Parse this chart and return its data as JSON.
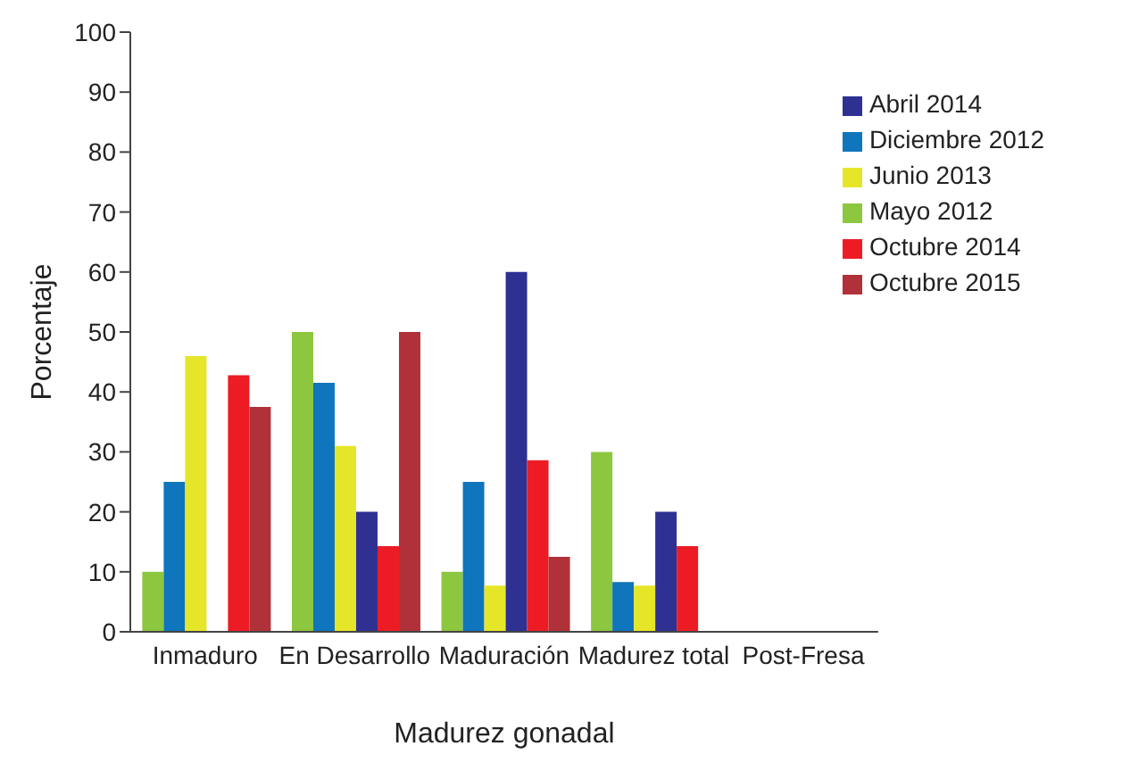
{
  "chart_data": {
    "type": "bar",
    "xlabel": "Madurez gonadal",
    "ylabel": "Porcentaje",
    "categories": [
      "Inmaduro",
      "En Desarrollo",
      "Maduración",
      "Madurez total",
      "Post-Fresa"
    ],
    "series": [
      {
        "name": "Mayo 2012",
        "color": "#8dc63f",
        "values": [
          10,
          50,
          10,
          30,
          0
        ]
      },
      {
        "name": "Diciembre 2012",
        "color": "#0f75bc",
        "values": [
          25,
          41.5,
          25,
          8.3,
          0
        ]
      },
      {
        "name": "Junio 2013",
        "color": "#e6e629",
        "values": [
          46,
          31,
          7.7,
          7.7,
          0
        ]
      },
      {
        "name": "Abril 2014",
        "color": "#2e3192",
        "values": [
          0,
          20,
          60,
          20,
          0
        ]
      },
      {
        "name": "Octubre 2014",
        "color": "#ed1c24",
        "values": [
          42.8,
          14.3,
          28.6,
          14.3,
          0
        ]
      },
      {
        "name": "Octubre 2015",
        "color": "#b0313a",
        "values": [
          37.5,
          50,
          12.5,
          0,
          0
        ]
      }
    ],
    "ylim": [
      0,
      100
    ],
    "yticks": [
      0,
      10,
      20,
      30,
      40,
      50,
      60,
      70,
      80,
      90,
      100
    ],
    "grid": false,
    "legend": "top right"
  }
}
